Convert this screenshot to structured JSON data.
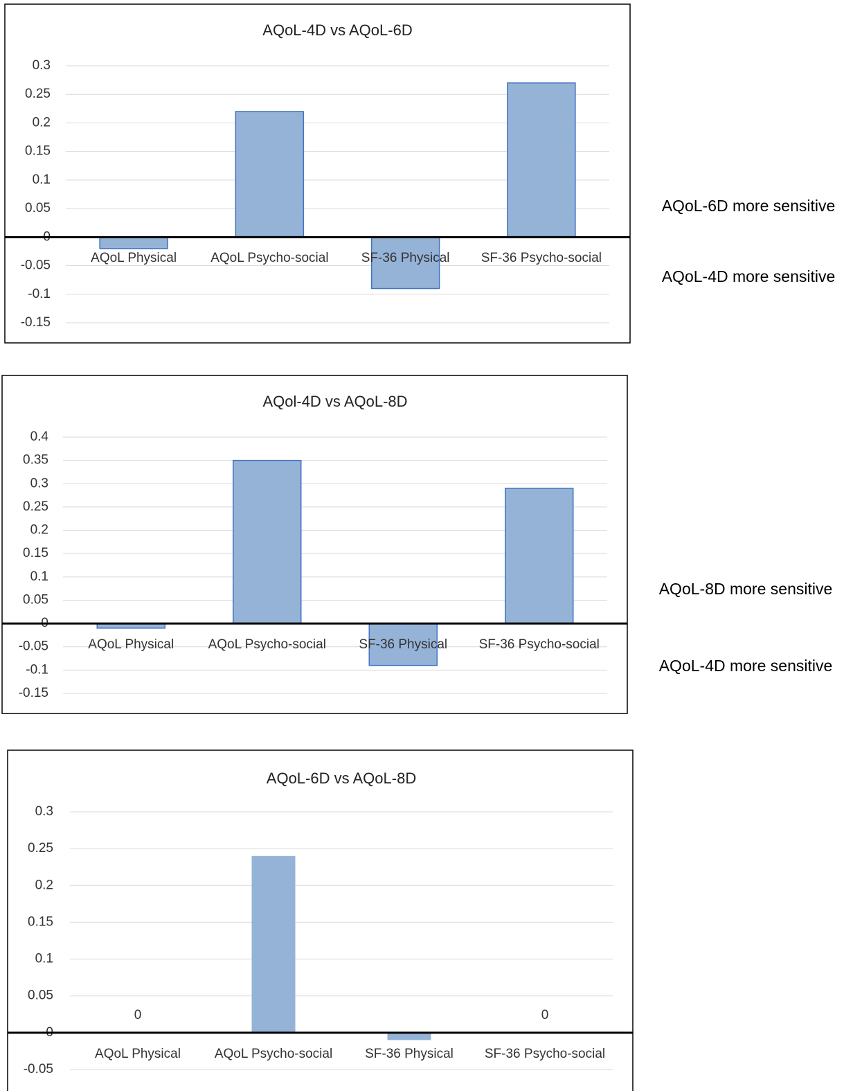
{
  "chart_data": [
    {
      "type": "bar",
      "title": "AQoL-4D vs AQoL-6D",
      "categories": [
        "AQoL Physical",
        "AQoL Psycho-social",
        "SF-36 Physical",
        "SF-36 Psycho-social"
      ],
      "values": [
        -0.02,
        0.22,
        -0.09,
        0.27
      ],
      "color": "#95b3d7",
      "edgecolor": "#4472c4",
      "ylim": [
        -0.15,
        0.3
      ],
      "yticks": [
        -0.15,
        -0.1,
        -0.05,
        0,
        0.05,
        0.1,
        0.15,
        0.2,
        0.25,
        0.3
      ],
      "grid": true,
      "annotations": [
        "AQoL-6D more sensitive",
        "AQoL-4D more sensitive"
      ]
    },
    {
      "type": "bar",
      "title": "AQol-4D vs AQoL-8D",
      "categories": [
        "AQoL Physical",
        "AQoL Psycho-social",
        "SF-36 Physical",
        "SF-36 Psycho-social"
      ],
      "values": [
        -0.01,
        0.35,
        -0.09,
        0.29
      ],
      "color": "#95b3d7",
      "edgecolor": "#4472c4",
      "ylim": [
        -0.15,
        0.4
      ],
      "yticks": [
        -0.15,
        -0.1,
        -0.05,
        0,
        0.05,
        0.1,
        0.15,
        0.2,
        0.25,
        0.3,
        0.35,
        0.4
      ],
      "grid": true,
      "annotations": [
        "AQoL-8D more sensitive",
        "AQoL-4D more sensitive"
      ]
    },
    {
      "type": "bar",
      "title": "AQoL-6D vs AQoL-8D",
      "categories": [
        "AQoL Physical",
        "AQoL Psycho-social",
        "SF-36 Physical",
        "SF-36 Psycho-social"
      ],
      "values": [
        0,
        0.24,
        -0.01,
        0
      ],
      "value_labels": [
        "0",
        null,
        null,
        "0"
      ],
      "color": "#95b3d7",
      "ylim": [
        -0.05,
        0.3
      ],
      "yticks": [
        -0.05,
        0,
        0.05,
        0.1,
        0.15,
        0.2,
        0.25,
        0.3
      ],
      "grid": true
    }
  ]
}
